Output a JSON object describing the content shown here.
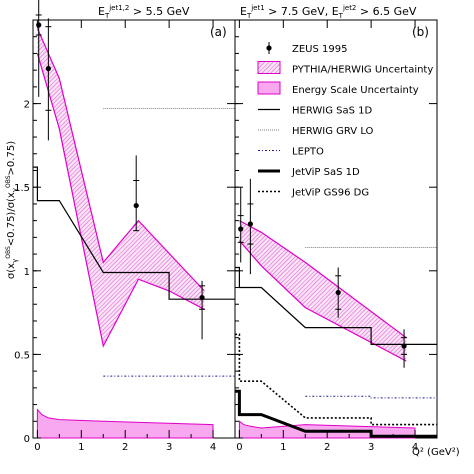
{
  "chart_data": [
    {
      "type": "line",
      "panel_label": "(a)",
      "header": "E_T^jet1,2 > 5.5 GeV",
      "ylabel": "σ(x_γ^OBS<0.75) / σ(x_γ^OBS>0.75)",
      "xlabel": "",
      "xlim": [
        -0.1,
        4.5
      ],
      "ylim": [
        0,
        2.5
      ],
      "x_ticks": [
        0,
        1,
        2,
        3,
        4
      ],
      "y_ticks": [
        0,
        0.5,
        1,
        1.5,
        2,
        2.5
      ],
      "y_tick_labels": [
        "0",
        "0.5",
        "1",
        "1.5",
        "2",
        ""
      ],
      "points": [
        {
          "x": 0.03,
          "y": 2.47,
          "ystat": 0.06,
          "ysys": [
            0.43,
            0.38
          ]
        },
        {
          "x": 0.25,
          "y": 2.21,
          "ystat": 0.25,
          "ysys": [
            0.43,
            0.3
          ]
        },
        {
          "x": 2.25,
          "y": 1.39,
          "ystat": 0.15,
          "ysys": [
            0.15,
            0.3
          ]
        },
        {
          "x": 3.75,
          "y": 0.84,
          "ystat": 0.07,
          "ysys": [
            0.25,
            0.1
          ]
        }
      ],
      "model_band_low": [
        {
          "x": 0.0,
          "y": 2.3
        },
        {
          "x": 0.5,
          "y": 1.85
        },
        {
          "x": 1.5,
          "y": 0.55
        },
        {
          "x": 2.3,
          "y": 0.95
        },
        {
          "x": 3.0,
          "y": 0.88
        },
        {
          "x": 3.8,
          "y": 0.77
        }
      ],
      "model_band_high": [
        {
          "x": 0.0,
          "y": 2.45
        },
        {
          "x": 0.5,
          "y": 2.15
        },
        {
          "x": 1.5,
          "y": 1.05
        },
        {
          "x": 2.3,
          "y": 1.3
        },
        {
          "x": 3.8,
          "y": 0.88
        }
      ],
      "energy_scale_band": [
        {
          "x": 0.0,
          "y": 0.17
        },
        {
          "x": 0.1,
          "y": 0.14
        },
        {
          "x": 0.25,
          "y": 0.12
        },
        {
          "x": 0.5,
          "y": 0.11
        },
        {
          "x": 1.5,
          "y": 0.1
        },
        {
          "x": 4.0,
          "y": 0.08
        }
      ],
      "herwig_sas": [
        {
          "x": -0.1,
          "y": 1.62
        },
        {
          "x": 0.0,
          "y": 1.62
        },
        {
          "x": 0.0,
          "y": 1.42
        },
        {
          "x": 0.5,
          "y": 1.42
        },
        {
          "x": 1.5,
          "y": 0.99
        },
        {
          "x": 3.0,
          "y": 0.99
        },
        {
          "x": 3.0,
          "y": 0.83
        },
        {
          "x": 4.5,
          "y": 0.83
        }
      ],
      "herwig_grv": [
        {
          "x": 1.5,
          "y": 1.97
        },
        {
          "x": 4.5,
          "y": 1.97
        }
      ],
      "lepto": [
        {
          "x": 1.5,
          "y": 0.37
        },
        {
          "x": 4.5,
          "y": 0.37
        }
      ]
    },
    {
      "type": "line",
      "panel_label": "(b)",
      "header": "E_T^jet1 > 7.5 GeV, E_T^jet2 > 6.5 GeV",
      "xlabel": "Q² (GeV²)",
      "ylabel": "",
      "xlim": [
        -0.1,
        4.5
      ],
      "ylim": [
        0,
        2.5
      ],
      "x_ticks": [
        0,
        1,
        2,
        3,
        4
      ],
      "points": [
        {
          "x": 0.03,
          "y": 1.25,
          "ystat": 0.08,
          "ysys": [
            0.2,
            0.25
          ]
        },
        {
          "x": 0.25,
          "y": 1.28,
          "ystat": 0.12,
          "ysys": [
            0.3,
            0.27
          ]
        },
        {
          "x": 2.25,
          "y": 0.87,
          "ystat": 0.1,
          "ysys": [
            0.15,
            0.15
          ]
        },
        {
          "x": 3.75,
          "y": 0.55,
          "ystat": 0.05,
          "ysys": [
            0.13,
            0.1
          ]
        }
      ],
      "model_band_low": [
        {
          "x": 0.0,
          "y": 1.18
        },
        {
          "x": 0.5,
          "y": 1.03
        },
        {
          "x": 1.5,
          "y": 0.78
        },
        {
          "x": 3.8,
          "y": 0.46
        }
      ],
      "model_band_high": [
        {
          "x": 0.0,
          "y": 1.3
        },
        {
          "x": 0.5,
          "y": 1.23
        },
        {
          "x": 1.5,
          "y": 1.05
        },
        {
          "x": 3.8,
          "y": 0.6
        }
      ],
      "energy_scale_band": [
        {
          "x": 0.0,
          "y": 0.1
        },
        {
          "x": 0.1,
          "y": 0.08
        },
        {
          "x": 0.25,
          "y": 0.07
        },
        {
          "x": 0.5,
          "y": 0.06
        },
        {
          "x": 1.5,
          "y": 0.08
        },
        {
          "x": 4.0,
          "y": 0.06
        }
      ],
      "herwig_sas": [
        {
          "x": -0.1,
          "y": 1.02
        },
        {
          "x": 0.0,
          "y": 1.02
        },
        {
          "x": 0.0,
          "y": 0.9
        },
        {
          "x": 0.5,
          "y": 0.9
        },
        {
          "x": 1.5,
          "y": 0.66
        },
        {
          "x": 3.0,
          "y": 0.66
        },
        {
          "x": 3.0,
          "y": 0.56
        },
        {
          "x": 4.5,
          "y": 0.56
        }
      ],
      "herwig_grv": [
        {
          "x": 1.5,
          "y": 1.14
        },
        {
          "x": 4.5,
          "y": 1.14
        }
      ],
      "lepto": [
        {
          "x": 1.5,
          "y": 0.25
        },
        {
          "x": 3.0,
          "y": 0.25
        },
        {
          "x": 3.0,
          "y": 0.24
        },
        {
          "x": 4.5,
          "y": 0.24
        }
      ],
      "jetvip_sas": [
        {
          "x": -0.1,
          "y": 0.28
        },
        {
          "x": 0.0,
          "y": 0.28
        },
        {
          "x": 0.0,
          "y": 0.14
        },
        {
          "x": 0.5,
          "y": 0.14
        },
        {
          "x": 1.5,
          "y": 0.04
        },
        {
          "x": 3.0,
          "y": 0.04
        },
        {
          "x": 3.0,
          "y": 0.01
        },
        {
          "x": 4.5,
          "y": 0.01
        }
      ],
      "jetvip_gs96": [
        {
          "x": -0.1,
          "y": 0.62
        },
        {
          "x": 0.0,
          "y": 0.62
        },
        {
          "x": 0.0,
          "y": 0.34
        },
        {
          "x": 0.5,
          "y": 0.34
        },
        {
          "x": 1.5,
          "y": 0.12
        },
        {
          "x": 3.0,
          "y": 0.12
        },
        {
          "x": 3.0,
          "y": 0.08
        },
        {
          "x": 4.5,
          "y": 0.08
        }
      ],
      "legend": [
        {
          "key": "data",
          "label": "ZEUS 1995"
        },
        {
          "key": "model_band",
          "label": "PYTHIA/HERWIG Uncertainty"
        },
        {
          "key": "energy_scale",
          "label": "Energy Scale Uncertainty"
        },
        {
          "key": "herwig_sas",
          "label": "HERWIG SaS 1D"
        },
        {
          "key": "herwig_grv",
          "label": "HERWIG GRV LO"
        },
        {
          "key": "lepto",
          "label": "LEPTO"
        },
        {
          "key": "jetvip_sas",
          "label": "JetViP SaS 1D"
        },
        {
          "key": "jetvip_gs96",
          "label": "JetViP GS96 DG"
        }
      ],
      "legend_placement": "top-right"
    }
  ],
  "colors": {
    "band": "#e000c8",
    "band_fill": "#f7a8ee",
    "hatch": "#d040c0",
    "data": "#000000"
  }
}
